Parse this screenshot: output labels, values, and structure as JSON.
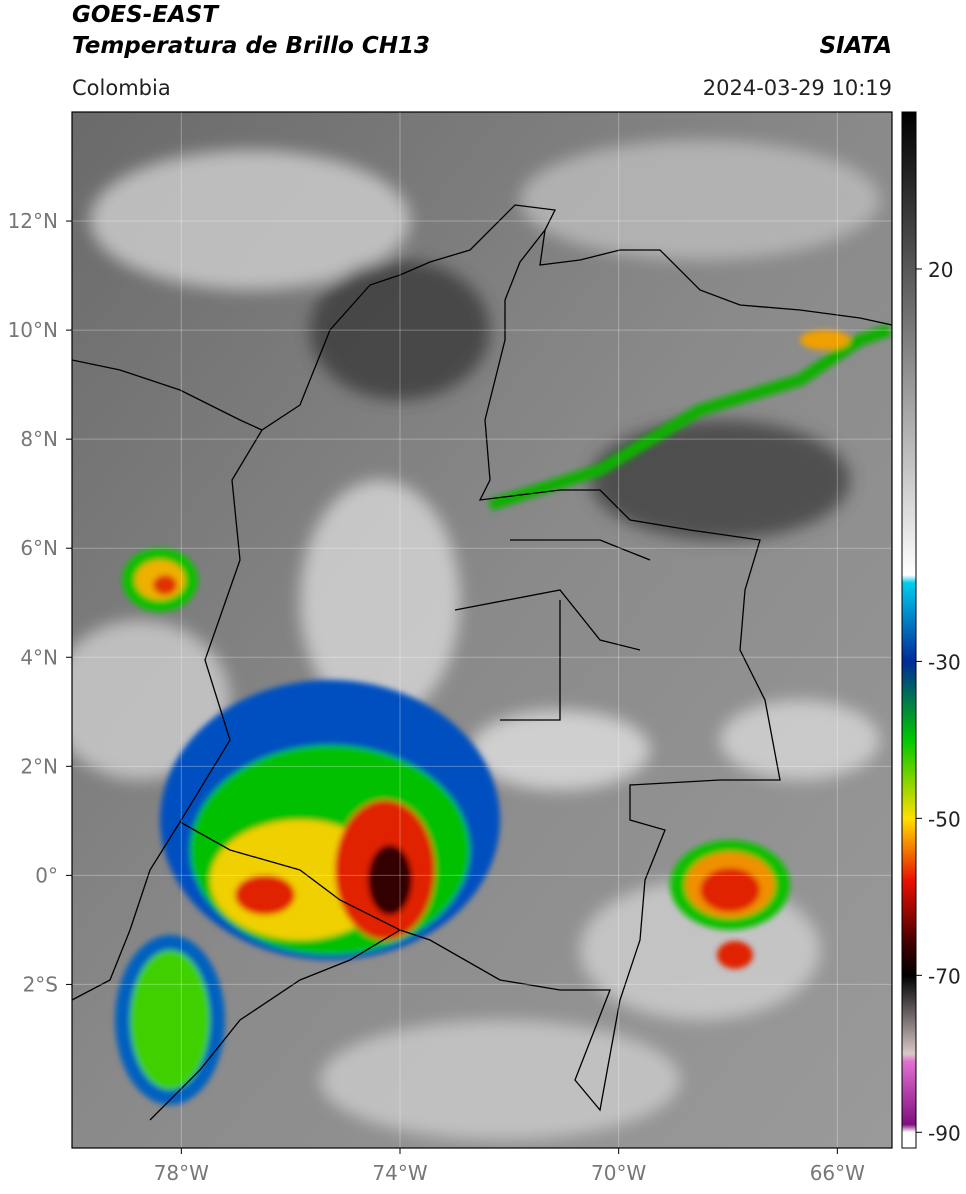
{
  "header": {
    "title": "GOES-EAST",
    "subtitle": "Temperatura de Brillo CH13",
    "source": "SIATA",
    "region": "Colombia",
    "datetime": "2024-03-29 10:19"
  },
  "map": {
    "xlim": [
      -80,
      -65
    ],
    "ylim": [
      -5,
      14
    ],
    "grid": true,
    "xticks": [
      {
        "value": -78,
        "label": "78°W"
      },
      {
        "value": -74,
        "label": "74°W"
      },
      {
        "value": -70,
        "label": "70°W"
      },
      {
        "value": -66,
        "label": "66°W"
      }
    ],
    "yticks": [
      {
        "value": 12,
        "label": "12°N"
      },
      {
        "value": 10,
        "label": "10°N"
      },
      {
        "value": 8,
        "label": "8°N"
      },
      {
        "value": 6,
        "label": "6°N"
      },
      {
        "value": 4,
        "label": "4°N"
      },
      {
        "value": 2,
        "label": "2°N"
      },
      {
        "value": 0,
        "label": "0°"
      },
      {
        "value": -2,
        "label": "2°S"
      }
    ]
  },
  "colorbar": {
    "lim": [
      -92,
      40
    ],
    "ticks": [
      20,
      -30,
      -50,
      -70,
      -90
    ],
    "stops": [
      {
        "value": 40,
        "color": "#000000"
      },
      {
        "value": 5,
        "color": "#999999"
      },
      {
        "value": -19,
        "color": "#ffffff"
      },
      {
        "value": -20,
        "color": "#00ccee"
      },
      {
        "value": -30,
        "color": "#002a9a"
      },
      {
        "value": -40,
        "color": "#00c800"
      },
      {
        "value": -50,
        "color": "#ffe000"
      },
      {
        "value": -58,
        "color": "#e81000"
      },
      {
        "value": -66,
        "color": "#400000"
      },
      {
        "value": -70,
        "color": "#000000"
      },
      {
        "value": -80,
        "color": "#d8c8c8"
      },
      {
        "value": -81,
        "color": "#e070d0"
      },
      {
        "value": -89,
        "color": "#801080"
      },
      {
        "value": -90,
        "color": "#ffffff"
      }
    ]
  }
}
